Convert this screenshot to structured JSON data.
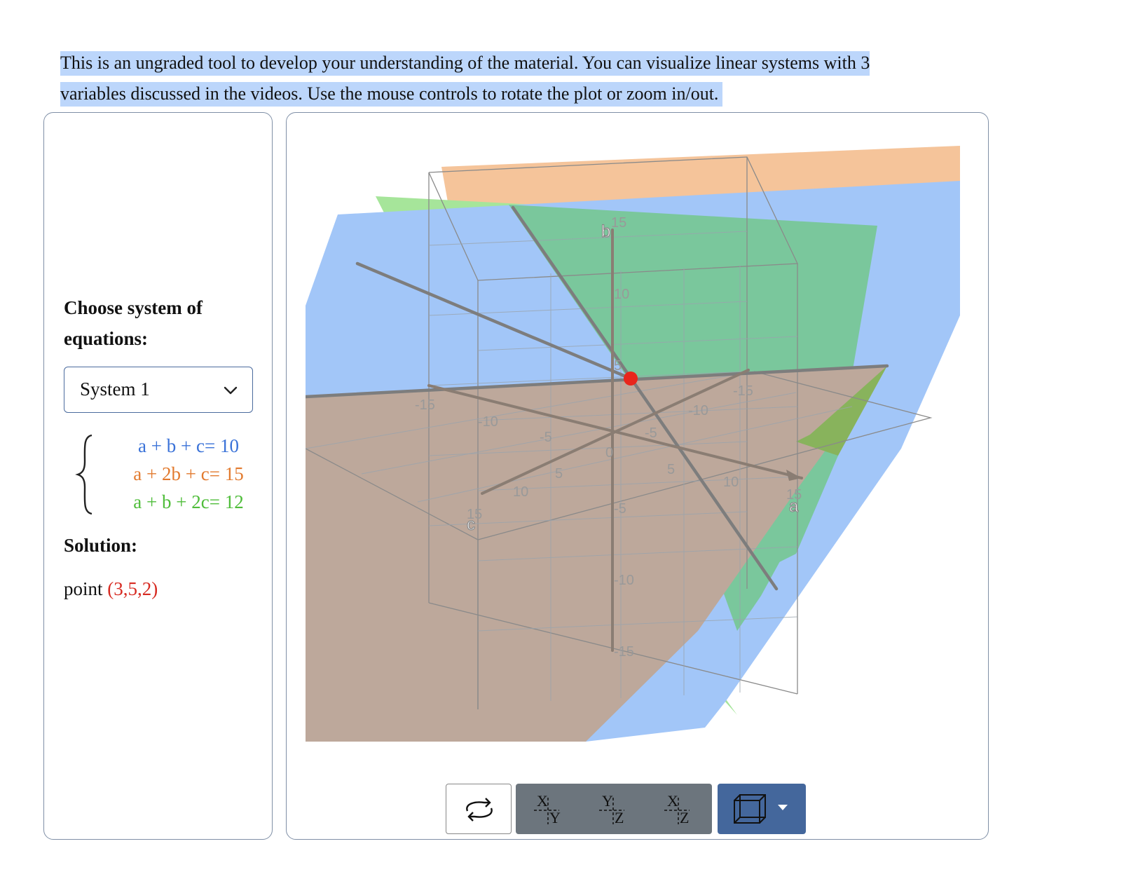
{
  "intro": {
    "text": "This is an ungraded tool to develop your understanding of the material. You can visualize linear systems with 3 variables discussed in the videos. Use the mouse controls to rotate the plot or zoom in/out."
  },
  "left_panel": {
    "choose_label": "Choose system of equations:",
    "select": {
      "value": "System 1",
      "icon": "chevron-down-icon"
    },
    "equations": [
      {
        "text": "a + b + c= 10",
        "color": "#3a72d8"
      },
      {
        "text": "a + 2b + c= 15",
        "color": "#e27a2e"
      },
      {
        "text": "a + b + 2c= 12",
        "color": "#4fbd3a"
      }
    ],
    "solution_label": "Solution:",
    "solution_prefix": "point",
    "solution_value": "(3,5,2)"
  },
  "plot": {
    "axes": {
      "a": "a",
      "b": "b",
      "c": "c"
    },
    "ticks_a": [
      "-15",
      "-10",
      "-5",
      "0",
      "5",
      "10",
      "15"
    ],
    "ticks_b": [
      "-15",
      "-10",
      "-5",
      "5",
      "10",
      "15"
    ],
    "ticks_c": [
      "-15",
      "-10",
      "-5",
      "5",
      "10",
      "15"
    ],
    "plane_colors": {
      "eq1": "#9fc4f7",
      "eq2": "#f5c49a",
      "eq3": "#9de28a"
    },
    "point_color": "#e8261c"
  },
  "toolbar": {
    "reset_icon": "rotate-reset-icon",
    "views": [
      {
        "top": "X",
        "bottom": "Y"
      },
      {
        "top": "Y",
        "bottom": "Z"
      },
      {
        "top": "X",
        "bottom": "Z"
      }
    ],
    "cube_icon": "cube-icon",
    "dropdown_icon": "caret-down-icon"
  }
}
